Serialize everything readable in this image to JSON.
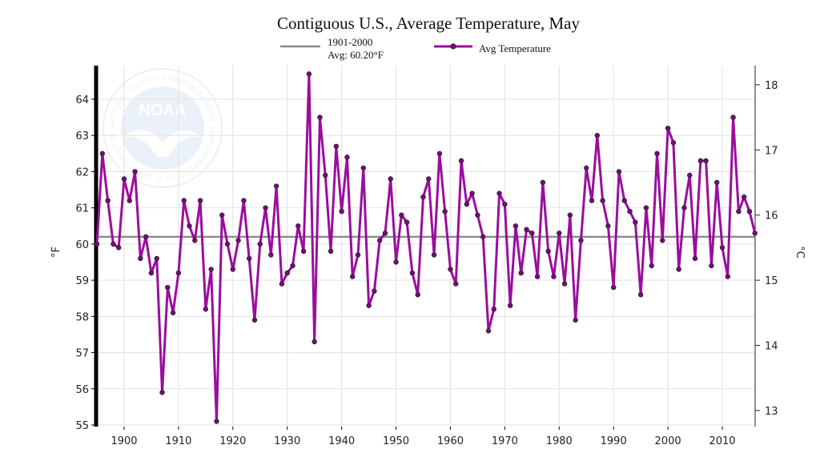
{
  "chart_data": {
    "type": "line",
    "title": "Contiguous U.S., Average Temperature, May",
    "xlabel": "",
    "ylabel": "°F",
    "y2label": "°C",
    "xlim": [
      1895,
      2016
    ],
    "ylim": [
      55,
      65
    ],
    "y2lim_c": [
      12.78,
      18.33
    ],
    "x_ticks": [
      1900,
      1910,
      1920,
      1930,
      1940,
      1950,
      1960,
      1970,
      1980,
      1990,
      2000,
      2010
    ],
    "y_ticks": [
      55,
      56,
      57,
      58,
      59,
      60,
      61,
      62,
      63,
      64
    ],
    "y2_ticks": [
      13,
      14,
      15,
      16,
      17,
      18
    ],
    "grid": true,
    "legend_position": "top",
    "colors": {
      "series": "#9b0d9f",
      "baseline": "#888888",
      "axis": "#000000"
    },
    "baseline": {
      "legend_label": "1901-2000",
      "legend_sublabel": "Avg: 60.20°F",
      "value": 60.2
    },
    "series": [
      {
        "name": "Avg Temperature",
        "x": [
          1895,
          1896,
          1897,
          1898,
          1899,
          1900,
          1901,
          1902,
          1903,
          1904,
          1905,
          1906,
          1907,
          1908,
          1909,
          1910,
          1911,
          1912,
          1913,
          1914,
          1915,
          1916,
          1917,
          1918,
          1919,
          1920,
          1921,
          1922,
          1923,
          1924,
          1925,
          1926,
          1927,
          1928,
          1929,
          1930,
          1931,
          1932,
          1933,
          1934,
          1935,
          1936,
          1937,
          1938,
          1939,
          1940,
          1941,
          1942,
          1943,
          1944,
          1945,
          1946,
          1947,
          1948,
          1949,
          1950,
          1951,
          1952,
          1953,
          1954,
          1955,
          1956,
          1957,
          1958,
          1959,
          1960,
          1961,
          1962,
          1963,
          1964,
          1965,
          1966,
          1967,
          1968,
          1969,
          1970,
          1971,
          1972,
          1973,
          1974,
          1975,
          1976,
          1977,
          1978,
          1979,
          1980,
          1981,
          1982,
          1983,
          1984,
          1985,
          1986,
          1987,
          1988,
          1989,
          1990,
          1991,
          1992,
          1993,
          1994,
          1995,
          1996,
          1997,
          1998,
          1999,
          2000,
          2001,
          2002,
          2003,
          2004,
          2005,
          2006,
          2007,
          2008,
          2009,
          2010,
          2011,
          2012,
          2013,
          2014,
          2015,
          2016
        ],
        "values": [
          60.0,
          62.5,
          61.2,
          60.0,
          59.9,
          61.8,
          61.2,
          62.0,
          59.6,
          60.2,
          59.2,
          59.6,
          55.9,
          58.8,
          58.1,
          59.2,
          61.2,
          60.5,
          60.1,
          61.2,
          58.2,
          59.3,
          55.1,
          60.8,
          60.0,
          59.3,
          60.1,
          61.2,
          59.6,
          57.9,
          60.0,
          61.0,
          59.7,
          61.6,
          58.9,
          59.2,
          59.4,
          60.5,
          59.8,
          64.7,
          57.3,
          63.5,
          61.9,
          59.8,
          62.7,
          60.9,
          62.4,
          59.1,
          59.7,
          62.1,
          58.3,
          58.7,
          60.1,
          60.3,
          61.8,
          59.5,
          60.8,
          60.6,
          59.2,
          58.6,
          61.3,
          61.8,
          59.7,
          62.5,
          60.9,
          59.3,
          58.9,
          62.3,
          61.1,
          61.4,
          60.8,
          60.2,
          57.6,
          58.2,
          61.4,
          61.1,
          58.3,
          60.5,
          59.2,
          60.4,
          60.3,
          59.1,
          61.7,
          59.8,
          59.1,
          60.3,
          58.9,
          60.8,
          57.9,
          60.1,
          62.1,
          61.2,
          63.0,
          61.2,
          60.5,
          58.8,
          62.0,
          61.2,
          60.9,
          60.6,
          58.6,
          61.0,
          59.4,
          62.5,
          60.1,
          63.2,
          62.8,
          59.3,
          61.0,
          61.9,
          59.6,
          62.3,
          62.3,
          59.4,
          61.7,
          59.9,
          59.1,
          63.5,
          60.9,
          61.3,
          60.9,
          60.3
        ]
      }
    ]
  },
  "watermark": {
    "logo_text": "NOAA",
    "ring_text": "NATIONAL OCEANIC AND ATMOSPHERIC ADMINISTRATION • U.S. DEPARTMENT OF COMMERCE •"
  }
}
